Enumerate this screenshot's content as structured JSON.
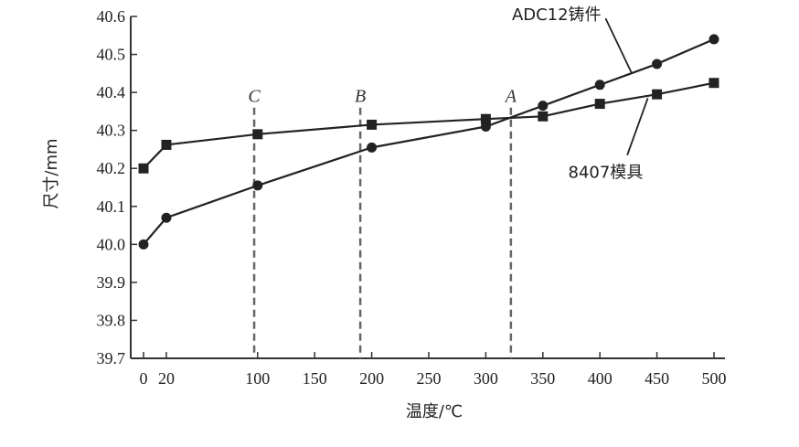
{
  "chart_data": {
    "type": "line",
    "xlabel": "温度/℃",
    "ylabel": "尺寸/mm",
    "ylim": [
      39.7,
      40.6
    ],
    "xlim": [
      0,
      500
    ],
    "x_ticks": [
      {
        "value": 0,
        "label": "0"
      },
      {
        "value": 20,
        "label": "20"
      },
      {
        "value": 100,
        "label": "100"
      },
      {
        "value": 150,
        "label": "150"
      },
      {
        "value": 200,
        "label": "200"
      },
      {
        "value": 250,
        "label": "250"
      },
      {
        "value": 300,
        "label": "300"
      },
      {
        "value": 350,
        "label": "350"
      },
      {
        "value": 400,
        "label": "400"
      },
      {
        "value": 450,
        "label": "450"
      },
      {
        "value": 500,
        "label": "500"
      }
    ],
    "y_ticks": [
      "39.7",
      "39.8",
      "39.9",
      "40.0",
      "40.1",
      "40.2",
      "40.3",
      "40.4",
      "40.5",
      "40.6"
    ],
    "grid": false,
    "series": [
      {
        "name": "ADC12铸件",
        "marker": "circle",
        "points": [
          [
            0,
            40.0
          ],
          [
            20,
            40.07
          ],
          [
            100,
            40.155
          ],
          [
            200,
            40.255
          ],
          [
            300,
            40.31
          ],
          [
            350,
            40.365
          ],
          [
            400,
            40.42
          ],
          [
            450,
            40.475
          ],
          [
            500,
            40.54
          ]
        ]
      },
      {
        "name": "8407模具",
        "marker": "square",
        "points": [
          [
            0,
            40.2
          ],
          [
            20,
            40.262
          ],
          [
            100,
            40.29
          ],
          [
            200,
            40.315
          ],
          [
            300,
            40.33
          ],
          [
            350,
            40.337
          ],
          [
            400,
            40.37
          ],
          [
            450,
            40.395
          ],
          [
            500,
            40.425
          ]
        ]
      }
    ],
    "vertical_markers": [
      {
        "label": "C",
        "x": 97
      },
      {
        "label": "B",
        "x": 190
      },
      {
        "label": "A",
        "x": 322
      }
    ]
  }
}
